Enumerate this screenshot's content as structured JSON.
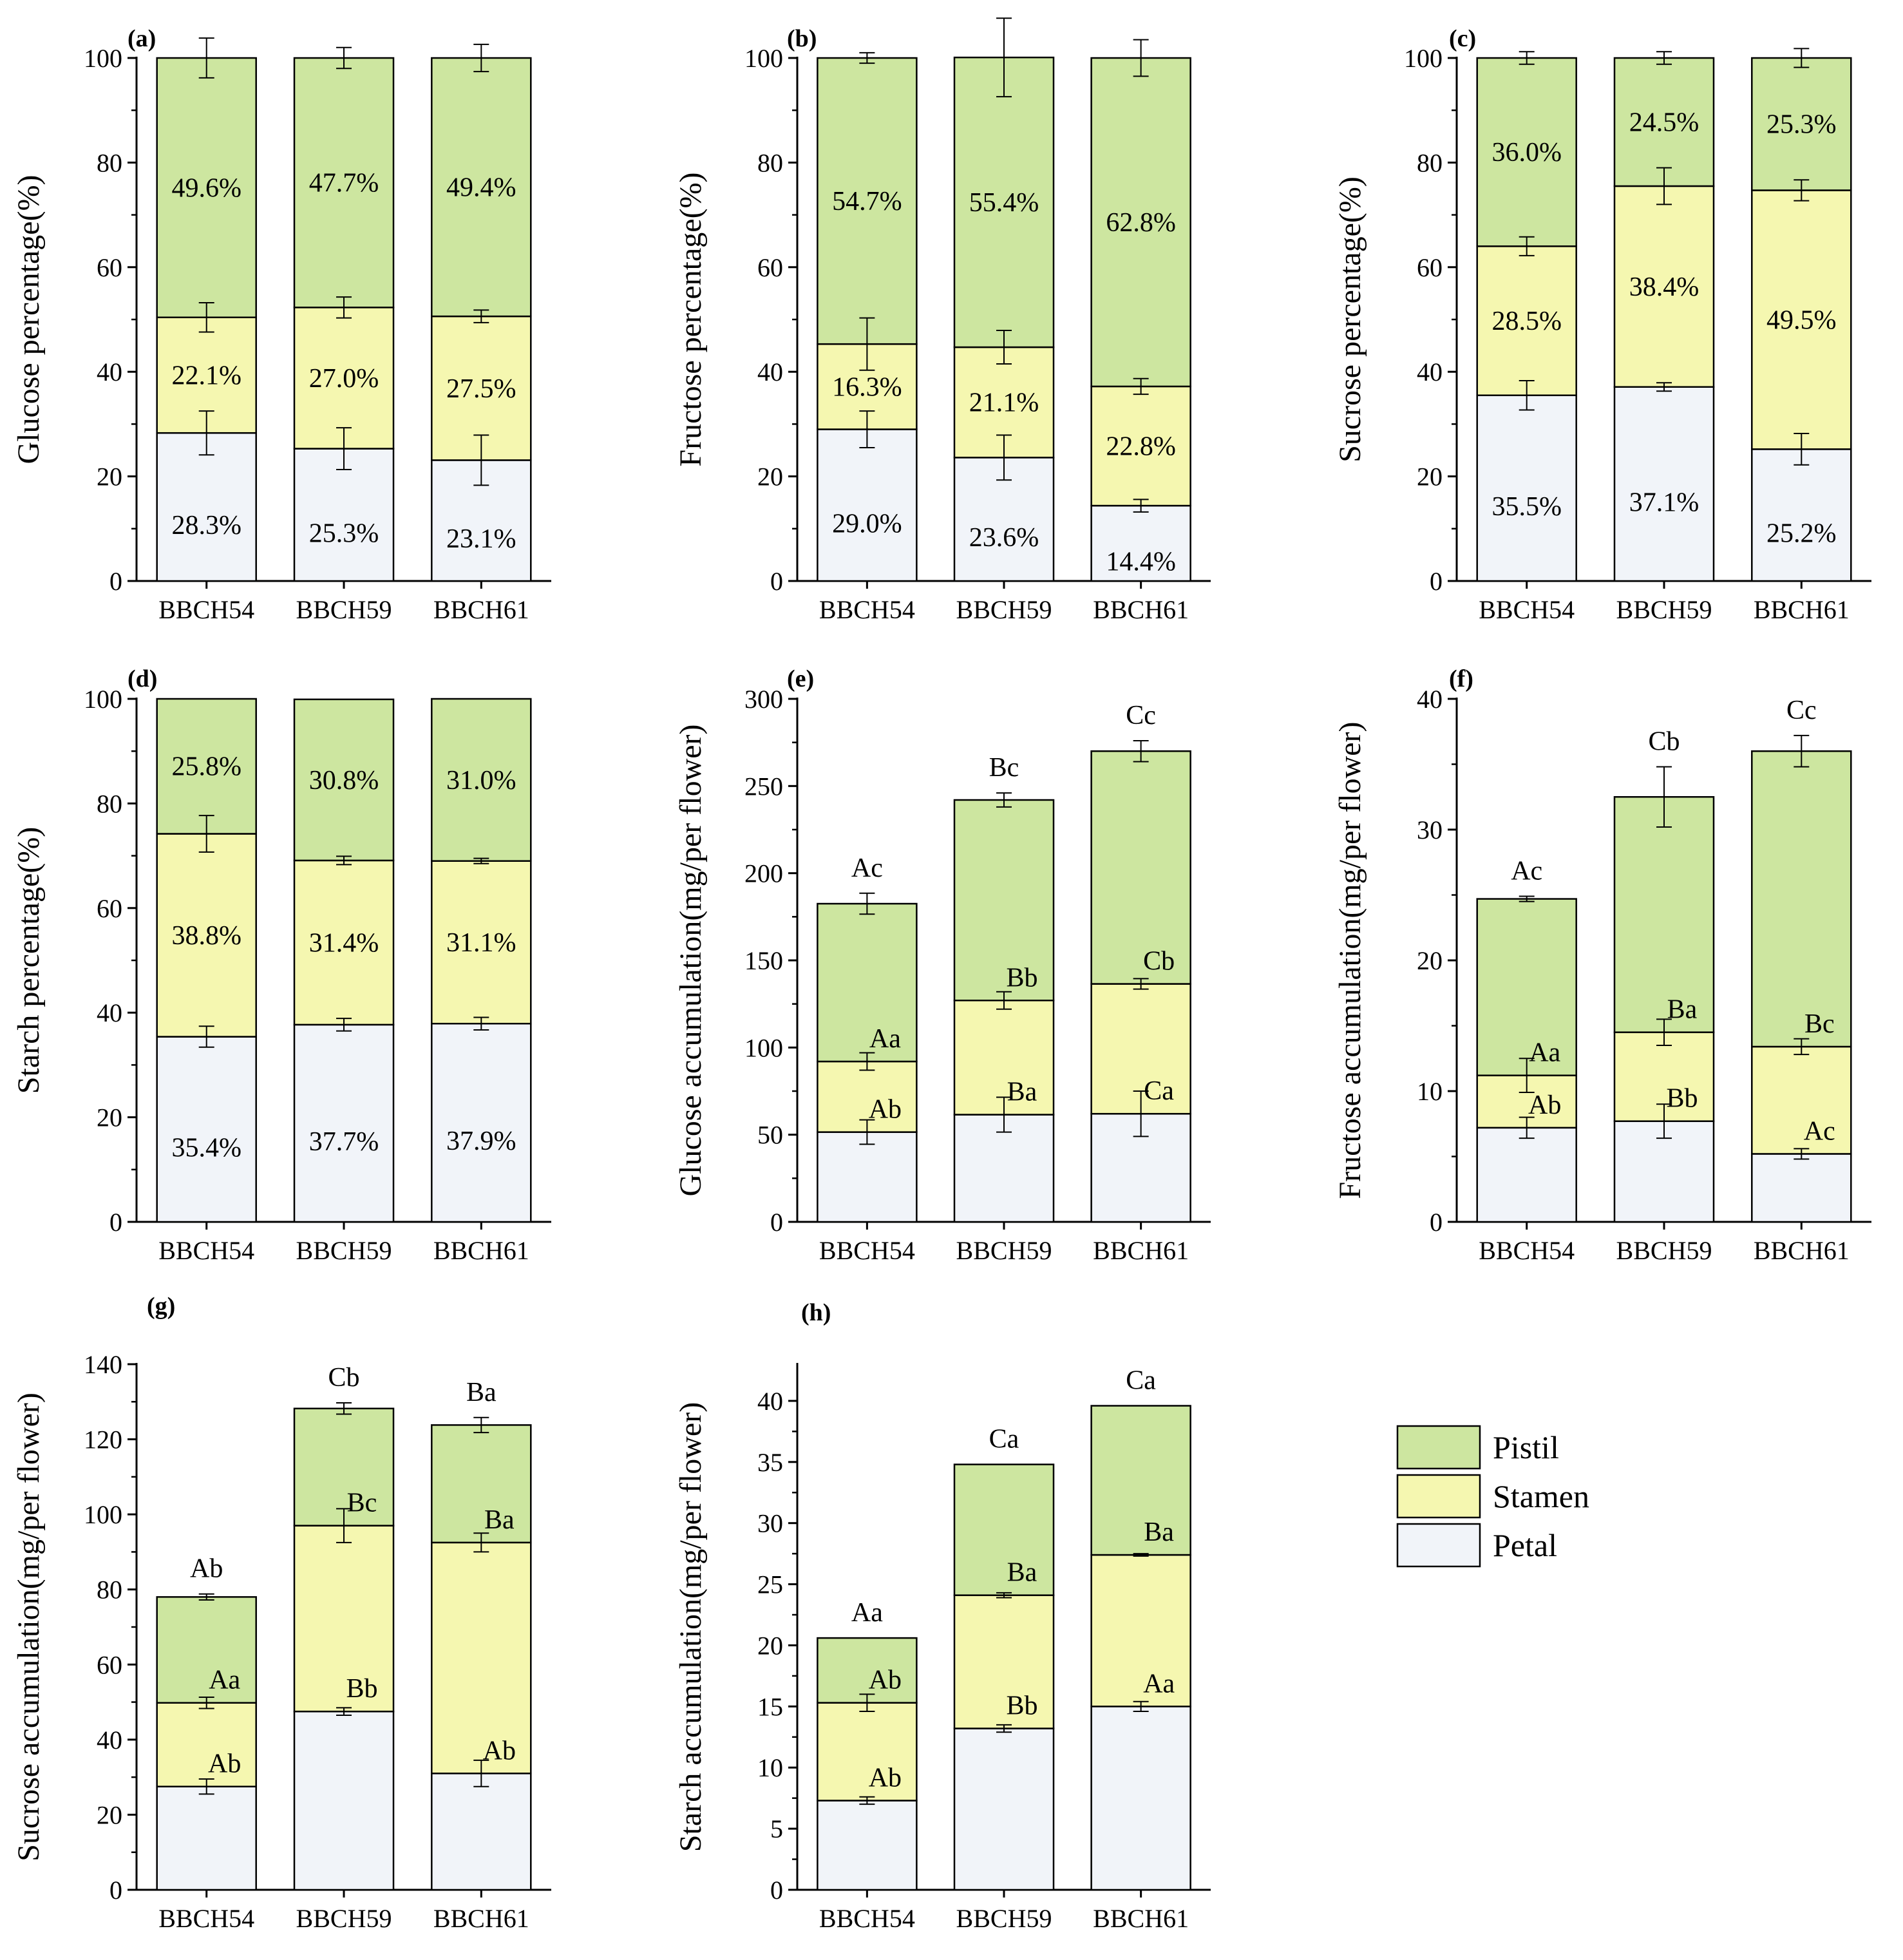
{
  "chart_data": [
    {
      "panel": "(a)",
      "type": "bar",
      "stacked": true,
      "ylabel": "Glucose percentage(%)",
      "ylim": [
        0,
        100
      ],
      "yticks": [
        0,
        20,
        40,
        60,
        80,
        100
      ],
      "categories": [
        "BBCH54",
        "BBCH59",
        "BBCH61"
      ],
      "series": [
        {
          "name": "Petal",
          "values": [
            28.3,
            25.3,
            23.1
          ],
          "errors": [
            4.2,
            4.0,
            4.8
          ],
          "labels": [
            "28.3%",
            "25.3%",
            "23.1%"
          ]
        },
        {
          "name": "Stamen",
          "values": [
            22.1,
            27.0,
            27.5
          ],
          "errors": [
            2.8,
            2.0,
            1.2
          ],
          "labels": [
            "22.1%",
            "27.0%",
            "27.5%"
          ]
        },
        {
          "name": "Pistil",
          "values": [
            49.6,
            47.7,
            49.4
          ],
          "errors": [
            3.8,
            2.0,
            2.6
          ],
          "labels": [
            "49.6%",
            "47.7%",
            "49.4%"
          ]
        }
      ],
      "top_labels": [
        "",
        "",
        ""
      ]
    },
    {
      "panel": "(b)",
      "type": "bar",
      "stacked": true,
      "ylabel": "Fructose percentage(%)",
      "ylim": [
        0,
        100
      ],
      "yticks": [
        0,
        20,
        40,
        60,
        80,
        100
      ],
      "categories": [
        "BBCH54",
        "BBCH59",
        "BBCH61"
      ],
      "series": [
        {
          "name": "Petal",
          "values": [
            29.0,
            23.6,
            14.4
          ],
          "errors": [
            3.5,
            4.3,
            1.2
          ],
          "labels": [
            "29.0%",
            "23.6%",
            "14.4%"
          ]
        },
        {
          "name": "Stamen",
          "values": [
            16.3,
            21.1,
            22.8
          ],
          "errors": [
            5.0,
            3.2,
            1.5
          ],
          "labels": [
            "16.3%",
            "21.1%",
            "22.8%"
          ]
        },
        {
          "name": "Pistil",
          "values": [
            54.7,
            55.4,
            62.8
          ],
          "errors": [
            1.0,
            7.5,
            3.5
          ],
          "labels": [
            "54.7%",
            "55.4%",
            "62.8%"
          ]
        }
      ],
      "top_labels": [
        "",
        "",
        ""
      ]
    },
    {
      "panel": "(c)",
      "type": "bar",
      "stacked": true,
      "ylabel": "Sucrose percentage(%)",
      "ylim": [
        0,
        100
      ],
      "yticks": [
        0,
        20,
        40,
        60,
        80,
        100
      ],
      "categories": [
        "BBCH54",
        "BBCH59",
        "BBCH61"
      ],
      "series": [
        {
          "name": "Petal",
          "values": [
            35.5,
            37.1,
            25.2
          ],
          "errors": [
            2.8,
            0.8,
            3.0
          ],
          "labels": [
            "35.5%",
            "37.1%",
            "25.2%"
          ]
        },
        {
          "name": "Stamen",
          "values": [
            28.5,
            38.4,
            49.5
          ],
          "errors": [
            1.8,
            3.5,
            2.0
          ],
          "labels": [
            "28.5%",
            "38.4%",
            "49.5%"
          ]
        },
        {
          "name": "Pistil",
          "values": [
            36.0,
            24.5,
            25.3
          ],
          "errors": [
            1.2,
            1.2,
            1.8
          ],
          "labels": [
            "36.0%",
            "24.5%",
            "25.3%"
          ]
        }
      ],
      "top_labels": [
        "",
        "",
        ""
      ]
    },
    {
      "panel": "(d)",
      "type": "bar",
      "stacked": true,
      "ylabel": "Starch percentage(%)",
      "ylim": [
        0,
        100
      ],
      "yticks": [
        0,
        20,
        40,
        60,
        80,
        100
      ],
      "categories": [
        "BBCH54",
        "BBCH59",
        "BBCH61"
      ],
      "series": [
        {
          "name": "Petal",
          "values": [
            35.4,
            37.7,
            37.9
          ],
          "errors": [
            2.0,
            1.2,
            1.2
          ],
          "labels": [
            "35.4%",
            "37.7%",
            "37.9%"
          ]
        },
        {
          "name": "Stamen",
          "values": [
            38.8,
            31.4,
            31.1
          ],
          "errors": [
            3.5,
            0.8,
            0.5
          ],
          "labels": [
            "38.8%",
            "31.4%",
            "31.1%"
          ]
        },
        {
          "name": "Pistil",
          "values": [
            25.8,
            30.8,
            31.0
          ],
          "errors": [
            0,
            0,
            0
          ],
          "labels": [
            "25.8%",
            "30.8%",
            "31.0%"
          ]
        }
      ],
      "top_labels": [
        "",
        "",
        ""
      ]
    },
    {
      "panel": "(e)",
      "type": "bar",
      "stacked": true,
      "ylabel": "Glucose accumulation(mg/per flower)",
      "ylim": [
        0,
        300
      ],
      "yticks": [
        0,
        50,
        100,
        150,
        200,
        250,
        300
      ],
      "categories": [
        "BBCH54",
        "BBCH59",
        "BBCH61"
      ],
      "series": [
        {
          "name": "Petal",
          "values": [
            51.5,
            61.5,
            62.0
          ],
          "errors": [
            7.0,
            10.0,
            13.0
          ],
          "labels": [
            "Ab",
            "Ba",
            "Ca"
          ]
        },
        {
          "name": "Stamen",
          "values": [
            40.5,
            65.5,
            74.5
          ],
          "errors": [
            5.0,
            5.0,
            3.0
          ],
          "labels": [
            "Aa",
            "Bb",
            "Cb"
          ]
        },
        {
          "name": "Pistil",
          "values": [
            90.5,
            115.0,
            133.5
          ],
          "errors": [
            6.0,
            4.0,
            6.0
          ],
          "labels": [
            "",
            "",
            ""
          ]
        }
      ],
      "top_labels": [
        "Ac",
        "Bc",
        "Cc"
      ]
    },
    {
      "panel": "(f)",
      "type": "bar",
      "stacked": true,
      "ylabel": "Fructose accumulation(mg/per flower)",
      "ylim": [
        0,
        40
      ],
      "yticks": [
        0,
        10,
        20,
        30,
        40
      ],
      "categories": [
        "BBCH54",
        "BBCH59",
        "BBCH61"
      ],
      "series": [
        {
          "name": "Petal",
          "values": [
            7.2,
            7.7,
            5.2
          ],
          "errors": [
            0.8,
            1.3,
            0.4
          ],
          "labels": [
            "Ab",
            "Bb",
            "Ac"
          ]
        },
        {
          "name": "Stamen",
          "values": [
            4.0,
            6.8,
            8.2
          ],
          "errors": [
            1.3,
            1.0,
            0.6
          ],
          "labels": [
            "Aa",
            "Ba",
            "Bc"
          ]
        },
        {
          "name": "Pistil",
          "values": [
            13.5,
            18.0,
            22.6
          ],
          "errors": [
            0.2,
            2.3,
            1.2
          ],
          "labels": [
            "",
            "",
            ""
          ]
        }
      ],
      "top_labels": [
        "Ac",
        "Cb",
        "Cc"
      ]
    },
    {
      "panel": "(g)",
      "type": "bar",
      "stacked": true,
      "ylabel": "Sucrose accumulation(mg/per flower)",
      "ylim": [
        0,
        140
      ],
      "yticks": [
        0,
        20,
        40,
        60,
        80,
        100,
        120,
        140
      ],
      "categories": [
        "BBCH54",
        "BBCH59",
        "BBCH61"
      ],
      "series": [
        {
          "name": "Petal",
          "values": [
            27.5,
            47.5,
            31.0
          ],
          "errors": [
            2.0,
            1.0,
            3.5
          ],
          "labels": [
            "Ab",
            "Bb",
            "Ab"
          ]
        },
        {
          "name": "Stamen",
          "values": [
            22.3,
            49.5,
            61.5
          ],
          "errors": [
            1.5,
            4.5,
            2.5
          ],
          "labels": [
            "Aa",
            "Bc",
            "Ba"
          ]
        },
        {
          "name": "Pistil",
          "values": [
            28.2,
            31.2,
            31.3
          ],
          "errors": [
            0.8,
            1.5,
            2.0
          ],
          "labels": [
            "",
            "",
            ""
          ]
        }
      ],
      "top_labels": [
        "Ab",
        "Cb",
        "Ba"
      ]
    },
    {
      "panel": "(h)",
      "type": "bar",
      "stacked": true,
      "ylabel": "Starch accumulation(mg/per flower)",
      "ylim": [
        0,
        43
      ],
      "yticks": [
        0,
        5,
        10,
        15,
        20,
        25,
        30,
        35,
        40
      ],
      "categories": [
        "BBCH54",
        "BBCH59",
        "BBCH61"
      ],
      "series": [
        {
          "name": "Petal",
          "values": [
            7.3,
            13.2,
            15.0
          ],
          "errors": [
            0.3,
            0.3,
            0.4
          ],
          "labels": [
            "Ab",
            "Bb",
            "Aa"
          ]
        },
        {
          "name": "Stamen",
          "values": [
            8.0,
            10.9,
            12.4
          ],
          "errors": [
            0.7,
            0.2,
            0.1
          ],
          "labels": [
            "Ab",
            "Ba",
            "Ba"
          ]
        },
        {
          "name": "Pistil",
          "values": [
            5.3,
            10.7,
            12.2
          ],
          "errors": [
            0,
            0,
            0
          ],
          "labels": [
            "",
            "",
            ""
          ]
        }
      ],
      "top_labels": [
        "Aa",
        "Ca",
        "Ca"
      ]
    }
  ],
  "legend": {
    "placement": "right-bottom",
    "items": [
      {
        "name": "Pistil",
        "color": "#cde6a0"
      },
      {
        "name": "Stamen",
        "color": "#f5f7b0"
      },
      {
        "name": "Petal",
        "color": "#f1f4f9"
      }
    ]
  },
  "colors": {
    "Petal": "#f1f4f9",
    "Stamen": "#f5f7b0",
    "Pistil": "#cde6a0",
    "axis": "#000000"
  }
}
